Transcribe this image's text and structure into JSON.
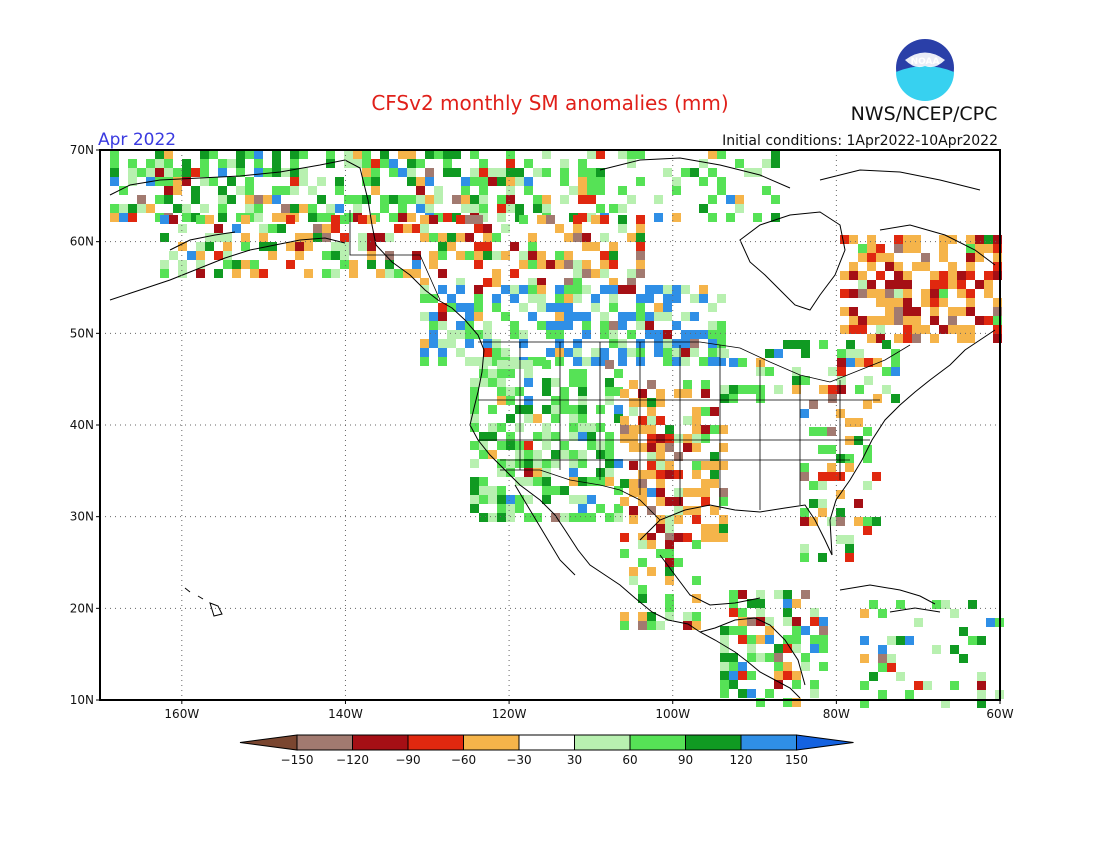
{
  "header": {
    "title": "CFSv2 monthly SM anomalies (mm)",
    "month_label": "Apr 2022",
    "initial_conditions": "Initial conditions: 1Apr2022-10Apr2022",
    "agency": "NWS/NCEP/CPC",
    "logo_text": "NOAA"
  },
  "map": {
    "lat_labels": [
      "70N",
      "60N",
      "50N",
      "40N",
      "30N",
      "20N",
      "10N"
    ],
    "lon_labels": [
      "160W",
      "140W",
      "120W",
      "100W",
      "80W",
      "60W"
    ],
    "region": "North America",
    "graticule": "dotted"
  },
  "colorbar": {
    "tick_labels": [
      "-150",
      "-120",
      "-90",
      "-60",
      "-30",
      "30",
      "60",
      "90",
      "120",
      "150"
    ],
    "colors": [
      "#7a4630",
      "#a27a70",
      "#a50f15",
      "#e0280f",
      "#f5b44a",
      "#ffffff",
      "#b8f0b0",
      "#56e256",
      "#109a22",
      "#2f8fe6",
      "#1462e0"
    ]
  },
  "colors": {
    "land_line": "#000000",
    "title": "#e0201a",
    "month_label": "#3a3ae0",
    "noaa_blue": "#2a3fa8",
    "noaa_cyan": "#37d1f0"
  }
}
